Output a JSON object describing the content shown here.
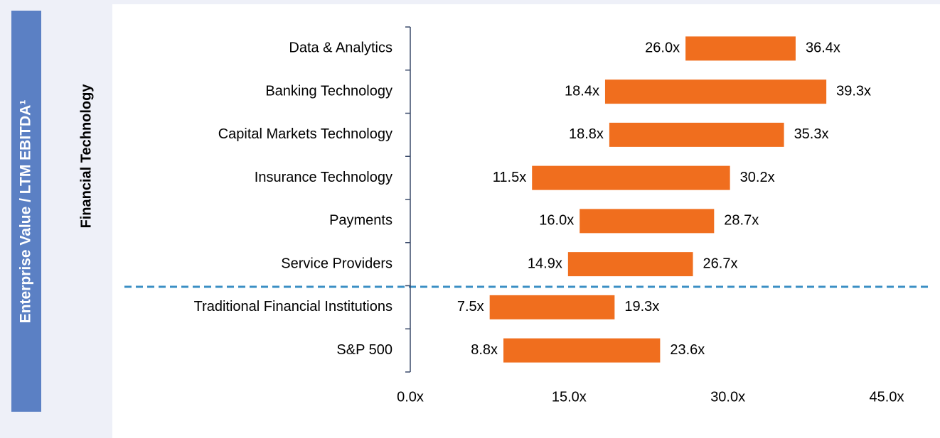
{
  "chart_data": {
    "type": "bar",
    "orientation": "horizontal",
    "floating": true,
    "y_label": "Enterprise Value / LTM EBITDA¹",
    "group_label": "Financial Technology",
    "categories": [
      "Data & Analytics",
      "Banking Technology",
      "Capital Markets Technology",
      "Insurance Technology",
      "Payments",
      "Service Providers",
      "Traditional Financial Institutions",
      "S&P 500"
    ],
    "color": "#f06e1e",
    "series": [
      {
        "values": [
          26.0,
          18.4,
          18.8,
          11.5,
          16.0,
          14.9,
          7.5,
          8.8
        ],
        "value_labels": [
          "26.0x",
          "18.4x",
          "18.8x",
          "11.5x",
          "16.0x",
          "14.9x",
          "7.5x",
          "8.8x"
        ]
      },
      {
        "values": [
          36.4,
          39.3,
          35.3,
          30.2,
          28.7,
          26.7,
          19.3,
          23.6
        ],
        "value_labels": [
          "36.4x",
          "39.3x",
          "35.3x",
          "30.2x",
          "28.7x",
          "26.7x",
          "19.3x",
          "23.6x"
        ]
      }
    ],
    "xlim": [
      0,
      45
    ],
    "xticks": [
      {
        "value": 0,
        "label": "0.0x"
      },
      {
        "value": 15,
        "label": "15.0x"
      },
      {
        "value": 30,
        "label": "30.0x"
      },
      {
        "value": 45,
        "label": "45.0x"
      }
    ],
    "grid": false
  }
}
